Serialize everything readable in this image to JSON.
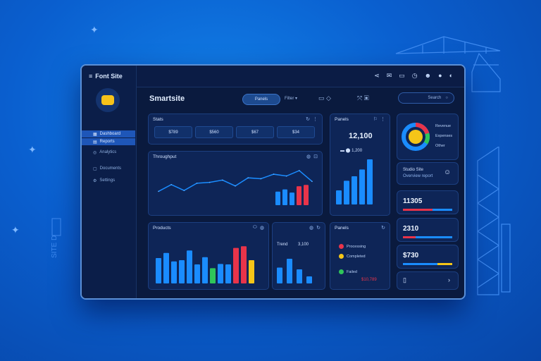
{
  "colors": {
    "accent": "#1a8cff",
    "red": "#e8344a",
    "yellow": "#f5c518",
    "green": "#2fc55a",
    "dark": "#0a1a3e"
  },
  "sidebar": {
    "brand": "Font Site",
    "items": [
      {
        "label": "Dashboard",
        "active": true
      },
      {
        "label": "Reports",
        "active": true
      },
      {
        "label": "Analytics",
        "active": false
      },
      {
        "label": "Documents",
        "active": false
      },
      {
        "label": "Settings",
        "active": false
      }
    ]
  },
  "topbar": {
    "icons": [
      "share-icon",
      "mail-icon",
      "calendar-icon",
      "clock-icon",
      "user-icon",
      "bell-icon",
      "globe-icon"
    ]
  },
  "toolbar": {
    "title": "Smartsite",
    "button": "Panels",
    "text1": "Filter ▾",
    "search": "Search"
  },
  "stats_card": {
    "title": "Stats",
    "values": [
      "$789",
      "$560",
      "$67",
      "$34"
    ]
  },
  "line_card": {
    "title": "Throughput"
  },
  "metric_card": {
    "title": "Panels",
    "value": "12,100",
    "sub": "1,200"
  },
  "bars_card": {
    "title": "Products"
  },
  "mini_card": {
    "title": "Trend",
    "value": "3,100"
  },
  "legend_card": {
    "title": "Panels",
    "items": [
      {
        "label": "Processing",
        "color": "#e8344a"
      },
      {
        "label": "Completed",
        "color": "#f5c518"
      },
      {
        "label": "Failed",
        "color": "#2fc55a"
      }
    ],
    "total": "$10,789"
  },
  "donut_card": {
    "legend": [
      "Revenue",
      "Expenses",
      "Other"
    ]
  },
  "profile_card": {
    "name": "Studio Site",
    "sub": "Overview report"
  },
  "kpi": [
    {
      "value": "11305"
    },
    {
      "value": "2310"
    },
    {
      "value": "$730"
    }
  ],
  "chart_data": [
    {
      "type": "line",
      "values": [
        40,
        55,
        42,
        58,
        60,
        65,
        52,
        70,
        68,
        78,
        74,
        86,
        62
      ]
    },
    {
      "type": "bar",
      "values": [
        30,
        35,
        28,
        42,
        45
      ]
    },
    {
      "type": "bar",
      "values": [
        25,
        42,
        50,
        62,
        80
      ]
    },
    {
      "type": "bar",
      "values": [
        60,
        72,
        52,
        55,
        78,
        45,
        62,
        36,
        46,
        45,
        84,
        88,
        55
      ]
    },
    {
      "type": "bar",
      "values": [
        45,
        70,
        40,
        20
      ]
    }
  ],
  "side_text": "SITE D"
}
